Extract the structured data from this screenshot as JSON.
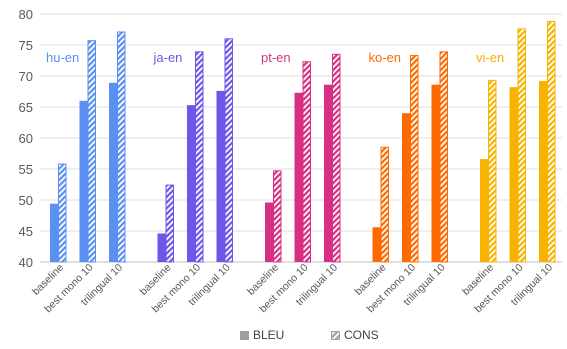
{
  "chart_data": {
    "type": "bar",
    "ylim": [
      40,
      80
    ],
    "yticks": [
      40,
      45,
      50,
      55,
      60,
      65,
      70,
      75,
      80
    ],
    "grid": true,
    "legend_position": "bottom",
    "legend": [
      {
        "name": "BLEU",
        "style": "solid"
      },
      {
        "name": "CONS",
        "style": "hatched"
      }
    ],
    "categories": [
      "baseline",
      "best mono 10",
      "trilingual 10"
    ],
    "groups": [
      {
        "label": "hu-en",
        "color": "#5b8ff0",
        "bleu": [
          49.4,
          66.0,
          68.9
        ],
        "cons": [
          55.8,
          75.7,
          77.1
        ]
      },
      {
        "label": "ja-en",
        "color": "#6f55e8",
        "bleu": [
          44.6,
          65.3,
          67.6
        ],
        "cons": [
          52.4,
          73.9,
          76.0
        ]
      },
      {
        "label": "pt-en",
        "color": "#d62f84",
        "bleu": [
          49.6,
          67.3,
          68.6
        ],
        "cons": [
          54.7,
          72.3,
          73.5
        ]
      },
      {
        "label": "ko-en",
        "color": "#ff6a00",
        "bleu": [
          45.6,
          64.0,
          68.6
        ],
        "cons": [
          58.5,
          73.3,
          73.9
        ]
      },
      {
        "label": "vi-en",
        "color": "#f7b300",
        "bleu": [
          56.6,
          68.2,
          69.2
        ],
        "cons": [
          69.3,
          77.6,
          78.8
        ]
      }
    ]
  }
}
